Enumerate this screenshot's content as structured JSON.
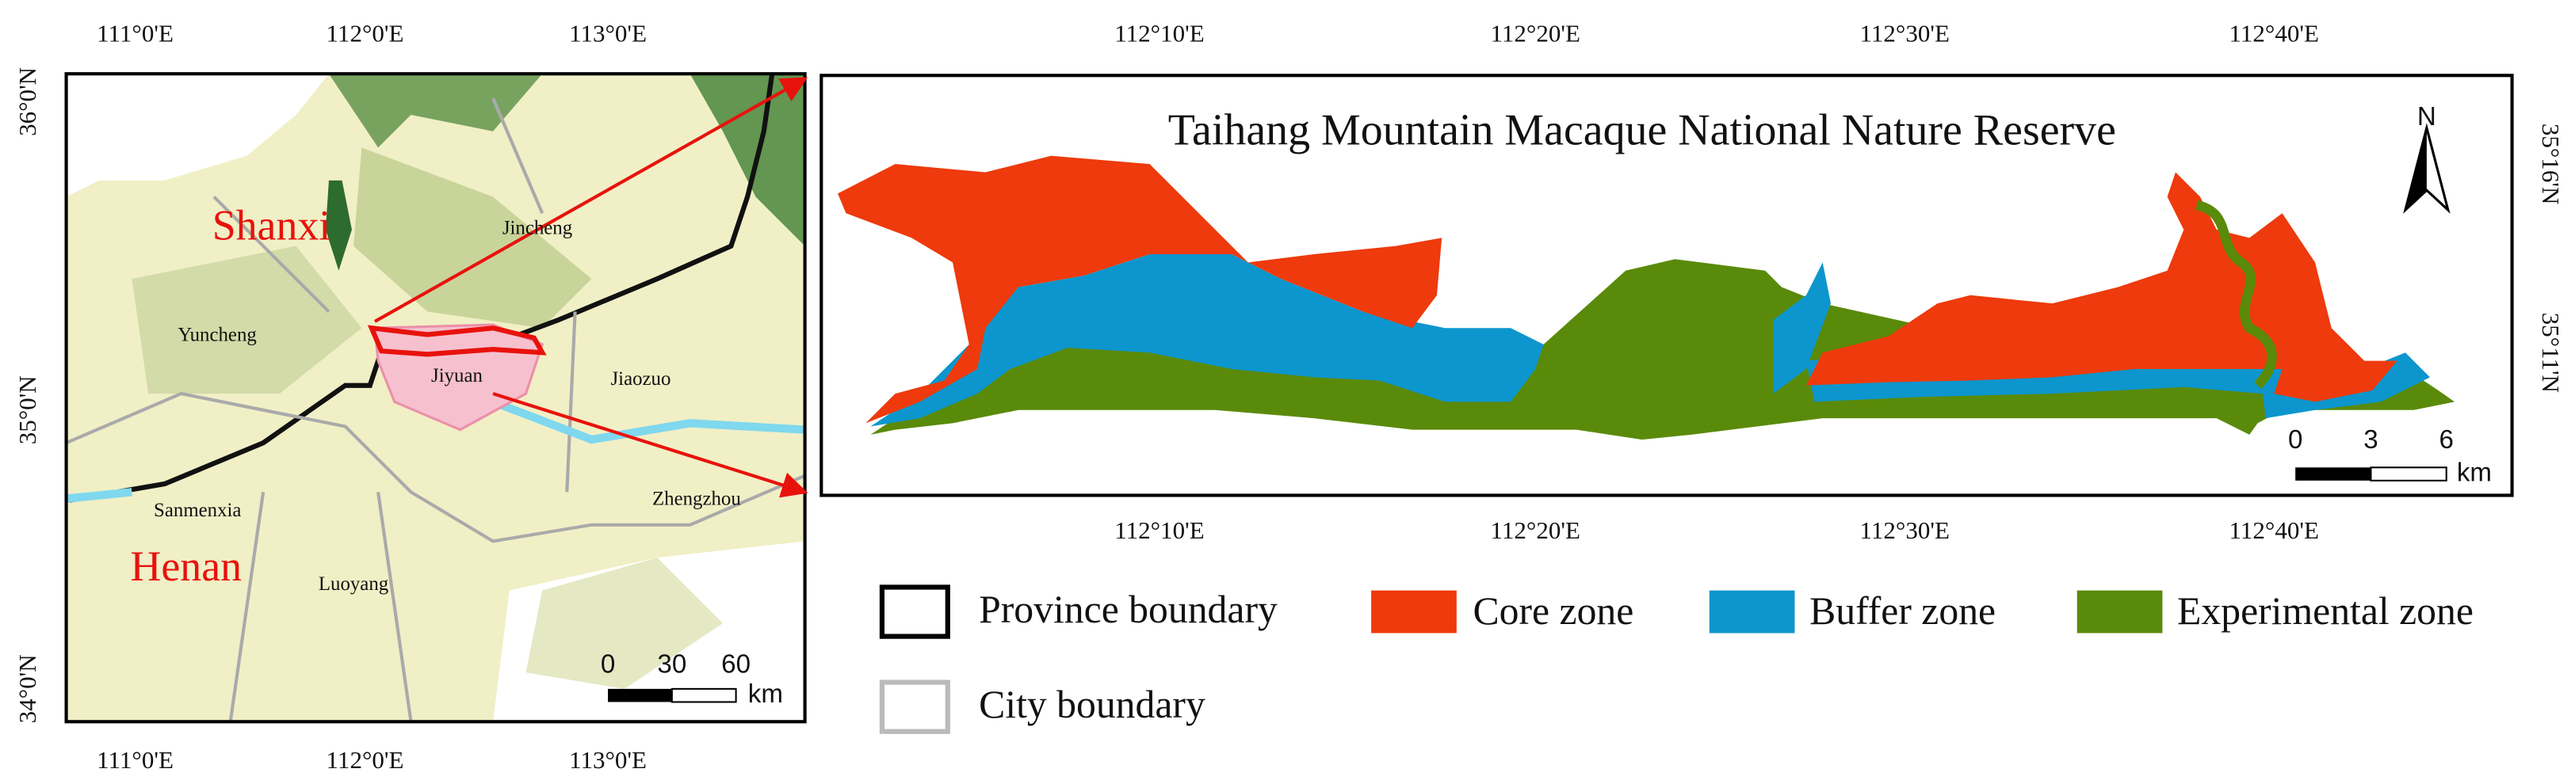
{
  "overview_map": {
    "lon_labels": [
      "111°0'E",
      "112°0'E",
      "113°0'E"
    ],
    "lat_labels": [
      "36°0'N",
      "35°0'N",
      "34°0'N"
    ],
    "provinces": [
      "Shanxi",
      "Henan"
    ],
    "cities": [
      "Jincheng",
      "Yuncheng",
      "Jiyuan",
      "Jiaozuo",
      "Sanmenxia",
      "Zhengzhou",
      "Luoyang"
    ],
    "scale_labels": [
      "0",
      "30",
      "60"
    ],
    "scale_unit": "km"
  },
  "detail_map": {
    "title": "Taihang Mountain Macaque National Nature Reserve",
    "lon_labels": [
      "112°10'E",
      "112°20'E",
      "112°30'E",
      "112°40'E"
    ],
    "lat_labels": [
      "35°16'N",
      "35°11'N"
    ],
    "north": "N",
    "scale_labels": [
      "0",
      "3",
      "6"
    ],
    "scale_unit": "km"
  },
  "legend": [
    "Province boundary",
    "City boundary",
    "Core zone",
    "Buffer zone",
    "Experimental zone"
  ]
}
